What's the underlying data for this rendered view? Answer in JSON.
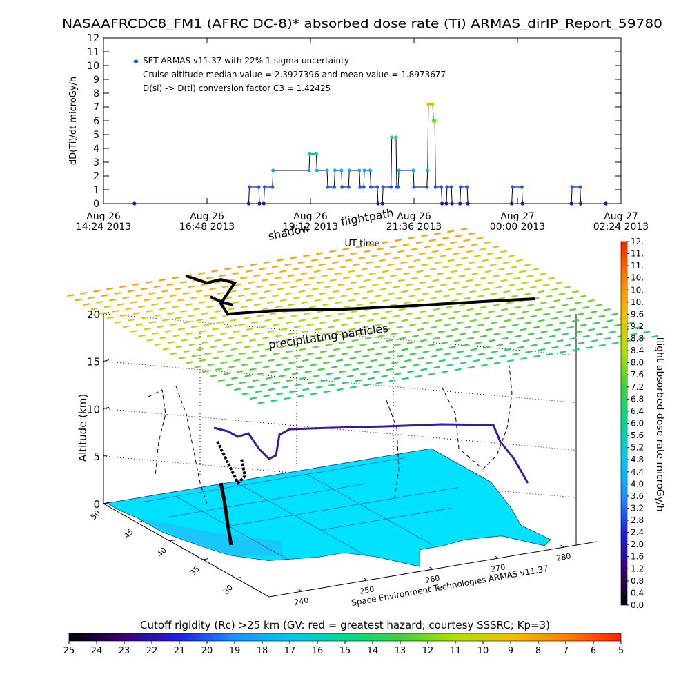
{
  "chart_data": [
    {
      "type": "line",
      "title": "NASAAFRCDC8_FM1 (AFRC DC-8)* absorbed dose rate (Ti) ARMAS_dirIP_Report_59780",
      "y_label": "dD(Ti)/dt microGy/h",
      "x_label": "UT time",
      "annotations": [
        "Cruise altitude median value = 2.3927396 and mean value = 1.8973677",
        "D(si) -> D(ti) conversion factor C3 = 1.42425"
      ],
      "x": [
        "2013-08-26T15:07",
        "2013-08-26T17:46",
        "2013-08-26T17:47",
        "2013-08-26T18:00",
        "2013-08-26T18:01",
        "2013-08-26T18:07",
        "2013-08-26T18:08",
        "2013-08-26T18:19",
        "2013-08-26T18:20",
        "2013-08-26T19:10",
        "2013-08-26T19:11",
        "2013-08-26T19:20",
        "2013-08-26T19:21",
        "2013-08-26T19:35",
        "2013-08-26T19:36",
        "2013-08-26T19:45",
        "2013-08-26T19:46",
        "2013-08-26T19:55",
        "2013-08-26T19:56",
        "2013-08-26T20:05",
        "2013-08-26T20:06",
        "2013-08-26T20:20",
        "2013-08-26T20:21",
        "2013-08-26T20:26",
        "2013-08-26T20:27",
        "2013-08-26T20:35",
        "2013-08-26T20:36",
        "2013-08-26T20:45",
        "2013-08-26T20:46",
        "2013-08-26T20:52",
        "2013-08-26T20:53",
        "2013-08-26T21:04",
        "2013-08-26T21:05",
        "2013-08-26T21:11",
        "2013-08-26T21:12",
        "2013-08-26T21:14",
        "2013-08-26T21:15",
        "2013-08-26T21:35",
        "2013-08-26T21:36",
        "2013-08-26T21:54",
        "2013-08-26T21:55",
        "2013-08-26T21:56",
        "2013-08-26T22:02",
        "2013-08-26T22:03",
        "2013-08-26T22:05",
        "2013-08-26T22:06",
        "2013-08-26T22:14",
        "2013-08-26T22:15",
        "2013-08-26T22:21",
        "2013-08-26T22:22",
        "2013-08-26T22:28",
        "2013-08-26T22:29",
        "2013-08-26T22:40",
        "2013-08-26T22:41",
        "2013-08-26T22:50",
        "2013-08-26T22:51",
        "2013-08-26T23:52",
        "2013-08-26T23:53",
        "2013-08-27T00:06",
        "2013-08-27T00:07",
        "2013-08-27T01:15",
        "2013-08-27T01:16",
        "2013-08-27T01:27",
        "2013-08-27T01:28",
        "2013-08-27T02:03"
      ],
      "series": [
        {
          "name": "SET ARMAS v11.37 with 22% 1-sigma uncertainty",
          "color": "#1f5fd0",
          "values": [
            0,
            0,
            1.2,
            1.2,
            0,
            0,
            1.2,
            1.2,
            2.4,
            2.4,
            3.6,
            3.6,
            2.4,
            2.4,
            1.2,
            1.2,
            2.4,
            2.4,
            1.2,
            1.2,
            2.4,
            2.4,
            1.2,
            1.2,
            2.4,
            2.4,
            1.2,
            1.2,
            0,
            0,
            1.2,
            1.2,
            4.8,
            4.8,
            1.2,
            1.2,
            2.4,
            2.4,
            1.2,
            1.2,
            2.4,
            7.2,
            7.2,
            6,
            6,
            1.2,
            1.2,
            0,
            0,
            1.2,
            1.2,
            0,
            0,
            1.2,
            1.2,
            0,
            0,
            1.2,
            1.2,
            0,
            0,
            1.2,
            1.2,
            0,
            0
          ]
        }
      ],
      "xlim": [
        "2013-08-26T14:24",
        "2013-08-27T02:24"
      ],
      "xticks": [
        {
          "value": "2013-08-26T14:24",
          "label": "Aug 26\n14:24 2013"
        },
        {
          "value": "2013-08-26T16:48",
          "label": "Aug 26\n16:48 2013"
        },
        {
          "value": "2013-08-26T19:12",
          "label": "Aug 26\n19:12 2013"
        },
        {
          "value": "2013-08-26T21:36",
          "label": "Aug 26\n21:36 2013"
        },
        {
          "value": "2013-08-27T00:00",
          "label": "Aug 27\n00:00 2013"
        },
        {
          "value": "2013-08-27T02:24",
          "label": "Aug 27\n02:24 2013"
        }
      ],
      "ylim": [
        0,
        12
      ],
      "yticks": [
        0,
        1,
        2,
        3,
        4,
        5,
        6,
        7,
        8,
        9,
        10,
        11,
        12
      ]
    },
    {
      "type": "surface3d",
      "z_label": "Altitude (km)",
      "annotations": [
        "shadow",
        "flightpath",
        "precipitating particles",
        "Space Environment Technologies ARMAS v11.37"
      ],
      "xlim": [
        235,
        285
      ],
      "xticks": [
        240,
        250,
        260,
        270,
        280
      ],
      "ylim": [
        25,
        50
      ],
      "yticks": [
        30,
        35,
        40,
        45,
        50
      ],
      "zlim": [
        0,
        21
      ],
      "zticks": [
        0,
        5,
        10,
        15,
        20
      ]
    },
    {
      "type": "colorbar",
      "label": "flight absorbed dose rate microGy/h",
      "colormap": [
        "#000000",
        "#3c0078",
        "#2020e0",
        "#1e90ff",
        "#00c8f0",
        "#00d890",
        "#40d040",
        "#b0e000",
        "#f0c000",
        "#ff8000",
        "#ff2000"
      ],
      "ylim": [
        0,
        12
      ],
      "yticks": [
        {
          "value": 0,
          "label": "0.0"
        },
        {
          "value": 0.4,
          "label": "0.4"
        },
        {
          "value": 0.8,
          "label": "0.8"
        },
        {
          "value": 1.2,
          "label": "1.2"
        },
        {
          "value": 1.6,
          "label": "1.6"
        },
        {
          "value": 2,
          "label": "2.0"
        },
        {
          "value": 2.4,
          "label": "2.4"
        },
        {
          "value": 2.8,
          "label": "2.8"
        },
        {
          "value": 3.2,
          "label": "3.2"
        },
        {
          "value": 3.6,
          "label": "3.6"
        },
        {
          "value": 4,
          "label": "4.0"
        },
        {
          "value": 4.4,
          "label": "4.4"
        },
        {
          "value": 4.8,
          "label": "4.8"
        },
        {
          "value": 5.2,
          "label": "5.2"
        },
        {
          "value": 5.6,
          "label": "5.6"
        },
        {
          "value": 6,
          "label": "6.0"
        },
        {
          "value": 6.4,
          "label": "6.4"
        },
        {
          "value": 6.8,
          "label": "6.8"
        },
        {
          "value": 7.2,
          "label": "7.2"
        },
        {
          "value": 7.6,
          "label": "7.6"
        },
        {
          "value": 8,
          "label": "8.0"
        },
        {
          "value": 8.4,
          "label": "8.4"
        },
        {
          "value": 8.8,
          "label": "8.8"
        },
        {
          "value": 9.2,
          "label": "9.2"
        },
        {
          "value": 9.6,
          "label": "9.6"
        },
        {
          "value": 10,
          "label": "10."
        },
        {
          "value": 10.4,
          "label": "10."
        },
        {
          "value": 10.8,
          "label": "10."
        },
        {
          "value": 11.2,
          "label": "11."
        },
        {
          "value": 11.6,
          "label": "11."
        },
        {
          "value": 12,
          "label": "12."
        }
      ]
    },
    {
      "type": "colorbar",
      "title": "Cutoff rigidity (Rc) >25 km (GV: red = greatest hazard; courtesy SSSRC; Kp=3)",
      "colormap": [
        "#000000",
        "#3c0078",
        "#2020e0",
        "#1e90ff",
        "#00c8f0",
        "#00d890",
        "#40d040",
        "#b0e000",
        "#f0c000",
        "#ff8000",
        "#ff2000"
      ],
      "xlim": [
        25,
        5
      ],
      "xticks": [
        25,
        24,
        23,
        22,
        21,
        20,
        19,
        18,
        17,
        16,
        15,
        14,
        13,
        12,
        11,
        10,
        9,
        8,
        7,
        6,
        5
      ]
    }
  ]
}
